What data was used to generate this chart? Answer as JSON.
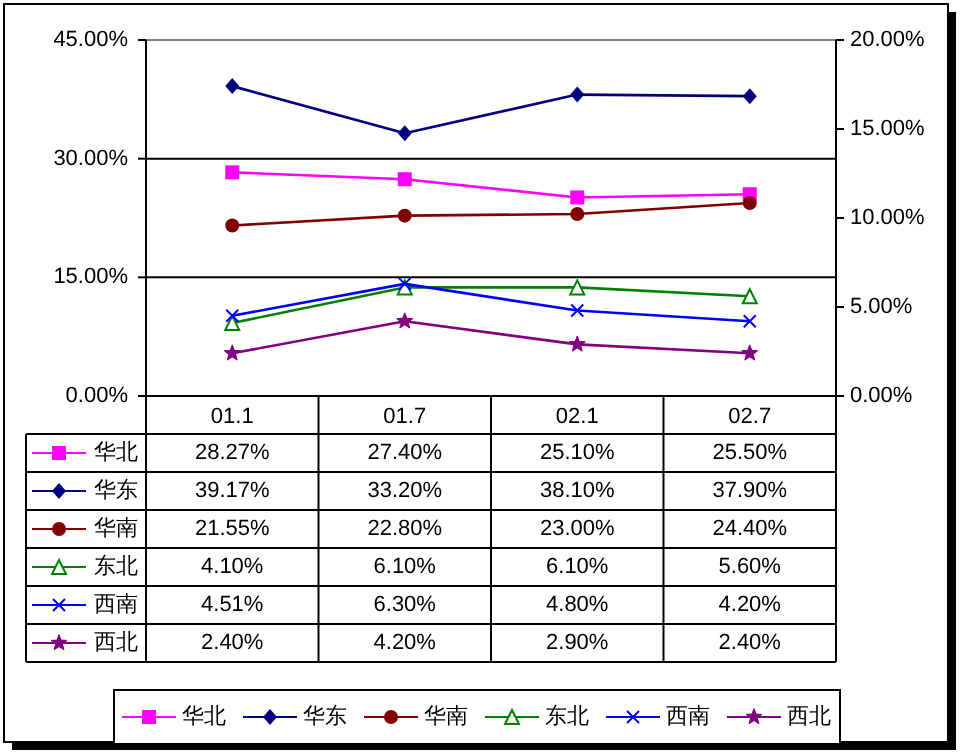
{
  "chart_data": {
    "type": "line",
    "categories": [
      "01.1",
      "01.7",
      "02.1",
      "02.7"
    ],
    "ylim": [
      0,
      45
    ],
    "yticks": [
      {
        "value": 0,
        "label": "0.00%"
      },
      {
        "value": 15,
        "label": "15.00%"
      },
      {
        "value": 30,
        "label": "30.00%"
      },
      {
        "value": 45,
        "label": "45.00%"
      }
    ],
    "y2lim": [
      0,
      20
    ],
    "y2ticks": [
      {
        "value": 0,
        "label": "0.00%"
      },
      {
        "value": 5,
        "label": "5.00%"
      },
      {
        "value": 10,
        "label": "10.00%"
      },
      {
        "value": 15,
        "label": "15.00%"
      },
      {
        "value": 20,
        "label": "20.00%"
      }
    ],
    "grid": "y",
    "legend": "bottom",
    "series": [
      {
        "name": "华北",
        "color": "#ff00ff",
        "marker": "square",
        "values": [
          28.27,
          27.4,
          25.1,
          25.5
        ],
        "value_labels": [
          "28.27%",
          "27.40%",
          "25.10%",
          "25.50%"
        ]
      },
      {
        "name": "华东",
        "color": "#000080",
        "marker": "diamond",
        "values": [
          39.17,
          33.2,
          38.1,
          37.9
        ],
        "value_labels": [
          "39.17%",
          "33.20%",
          "38.10%",
          "37.90%"
        ]
      },
      {
        "name": "华南",
        "color": "#800000",
        "marker": "circle",
        "values": [
          21.55,
          22.8,
          23.0,
          24.4
        ],
        "value_labels": [
          "21.55%",
          "22.80%",
          "23.00%",
          "24.40%"
        ]
      },
      {
        "name": "东北",
        "color": "#008000",
        "marker": "triangle",
        "axis": "y2",
        "values": [
          4.1,
          6.1,
          6.1,
          5.6
        ],
        "value_labels": [
          "4.10%",
          "6.10%",
          "6.10%",
          "5.60%"
        ]
      },
      {
        "name": "西南",
        "color": "#0000ff",
        "marker": "cross",
        "axis": "y2",
        "values": [
          4.51,
          6.3,
          4.8,
          4.2
        ],
        "value_labels": [
          "4.51%",
          "6.30%",
          "4.80%",
          "4.20%"
        ]
      },
      {
        "name": "西北",
        "color": "#800080",
        "marker": "star",
        "axis": "y2",
        "values": [
          2.4,
          4.2,
          2.9,
          2.4
        ],
        "value_labels": [
          "2.40%",
          "4.20%",
          "2.90%",
          "2.40%"
        ]
      }
    ]
  }
}
